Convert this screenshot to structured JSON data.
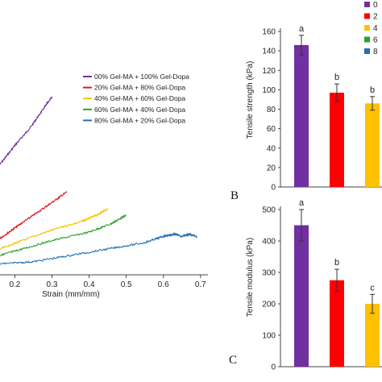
{
  "chart_data": [
    {
      "type": "line",
      "xlabel": "Strain (mm/mm)",
      "x_ticks": [
        "0.2",
        "0.3",
        "0.4",
        "0.5",
        "0.6",
        "0.7"
      ],
      "xlim": [
        0.16,
        0.72
      ],
      "legend_position": "top-right",
      "series": [
        {
          "name": "00% Gel-MA + 100% Gel-Dopa",
          "color": "#7030a0",
          "points": [
            [
              0.16,
              68
            ],
            [
              0.2,
              77
            ],
            [
              0.24,
              85
            ],
            [
              0.28,
              95
            ],
            [
              0.3,
              100
            ]
          ]
        },
        {
          "name": "20% Gel-MA + 80% Gel-Dopa",
          "color": "#e31a1c",
          "points": [
            [
              0.16,
              33
            ],
            [
              0.2,
              38
            ],
            [
              0.25,
              44
            ],
            [
              0.3,
              50
            ],
            [
              0.34,
              55
            ]
          ]
        },
        {
          "name": "40% Gel-MA + 60% Gel-Dopa",
          "color": "#f5c400",
          "points": [
            [
              0.16,
              28
            ],
            [
              0.22,
              32
            ],
            [
              0.3,
              37
            ],
            [
              0.38,
              41
            ],
            [
              0.42,
              44
            ],
            [
              0.45,
              47
            ]
          ]
        },
        {
          "name": "60% Gel-MA + 40% Gel-Dopa",
          "color": "#2ca02c",
          "points": [
            [
              0.16,
              25
            ],
            [
              0.22,
              28
            ],
            [
              0.3,
              32
            ],
            [
              0.4,
              36
            ],
            [
              0.46,
              40
            ],
            [
              0.5,
              44
            ]
          ]
        },
        {
          "name": "80% Gel-MA + 20% Gel-Dopa",
          "color": "#1f6fb4",
          "points": [
            [
              0.16,
              21
            ],
            [
              0.25,
              22
            ],
            [
              0.35,
              25
            ],
            [
              0.45,
              28
            ],
            [
              0.55,
              31
            ],
            [
              0.6,
              34
            ],
            [
              0.63,
              35
            ],
            [
              0.65,
              34
            ],
            [
              0.67,
              35
            ],
            [
              0.69,
              34
            ]
          ]
        }
      ]
    },
    {
      "type": "bar",
      "panel_label": "B",
      "ylabel": "Tensile strength (kPa)",
      "ylim": [
        0,
        160
      ],
      "y_ticks": [
        "0",
        "20",
        "40",
        "60",
        "80",
        "100",
        "120",
        "140",
        "160"
      ],
      "values": [
        146,
        97,
        86
      ],
      "errors": [
        10,
        9,
        7
      ],
      "significance": [
        "a",
        "b",
        "b"
      ],
      "colors": [
        "#7030a0",
        "#ff0000",
        "#ffc000"
      ]
    },
    {
      "type": "bar",
      "panel_label": "C",
      "ylabel": "Tensile modulus (kPa)",
      "ylim": [
        0,
        500
      ],
      "y_ticks": [
        "0",
        "100",
        "200",
        "300",
        "400",
        "500"
      ],
      "values": [
        450,
        275,
        200
      ],
      "errors": [
        50,
        35,
        30
      ],
      "significance": [
        "a",
        "b",
        "c"
      ],
      "colors": [
        "#7030a0",
        "#ff0000",
        "#ffc000"
      ]
    }
  ],
  "right_legend": {
    "labels": [
      "0",
      "2",
      "4",
      "6",
      "8"
    ],
    "colors": [
      "#7030a0",
      "#ff0000",
      "#ffc000",
      "#2ca02c",
      "#1f6fb4"
    ]
  }
}
